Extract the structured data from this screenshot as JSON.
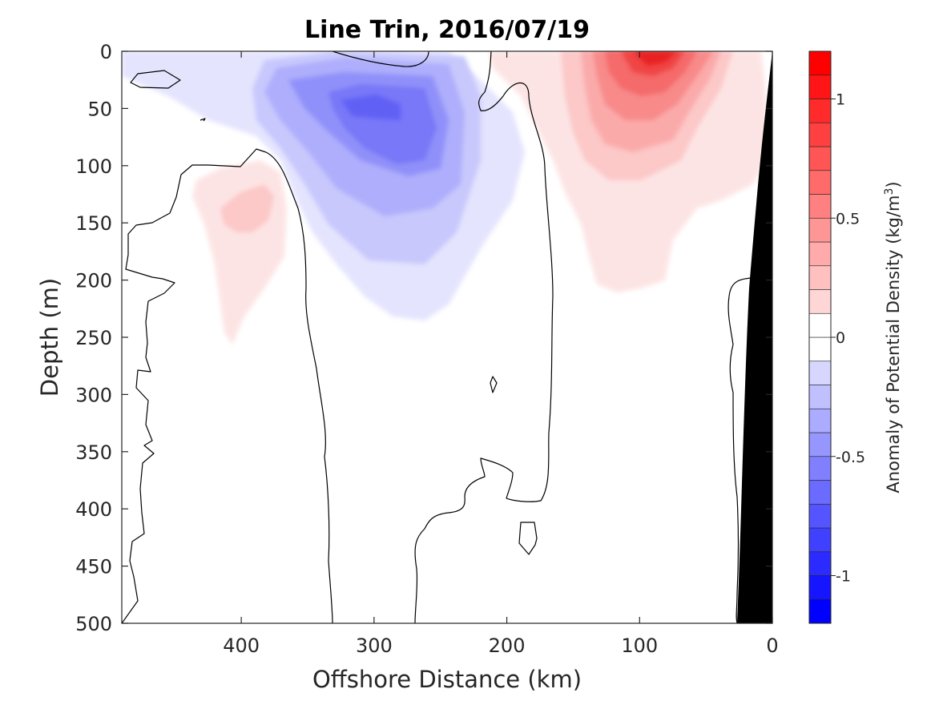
{
  "chart_data": {
    "type": "contourf",
    "title": "Line Trin, 2016/07/19",
    "xlabel": "Offshore Distance (km)",
    "ylabel": "Depth (m)",
    "xlim": [
      490,
      0
    ],
    "ylim": [
      0,
      500
    ],
    "x_ticks": [
      "400",
      "300",
      "200",
      "100",
      "0"
    ],
    "y_ticks": [
      "0",
      "50",
      "100",
      "150",
      "200",
      "250",
      "300",
      "350",
      "400",
      "450",
      "500"
    ],
    "x_tick_values": [
      400,
      300,
      200,
      100,
      0
    ],
    "y_tick_values": [
      0,
      50,
      100,
      150,
      200,
      250,
      300,
      350,
      400,
      450,
      500
    ],
    "colorbar": {
      "label_main": "Anomaly of Potential Density (kg/m",
      "label_sup": "3",
      "label_close": ")",
      "range": [
        -1.2,
        1.2
      ],
      "step": 0.1,
      "ticks": [
        "1",
        "0.5",
        "0",
        "-0.5",
        "-1"
      ],
      "tick_values": [
        1,
        0.5,
        0,
        -0.5,
        -1
      ]
    },
    "features": [
      {
        "kind": "negative-anomaly",
        "center_km": 285,
        "center_depth_m": 45,
        "min_value": -0.6
      },
      {
        "kind": "positive-anomaly",
        "center_km": 85,
        "center_depth_m": 5,
        "max_value": 1.0
      },
      {
        "kind": "positive-anomaly",
        "center_km": 410,
        "center_depth_m": 140,
        "max_value": 0.2
      },
      {
        "kind": "bathymetry",
        "description": "shelf"
      }
    ]
  }
}
